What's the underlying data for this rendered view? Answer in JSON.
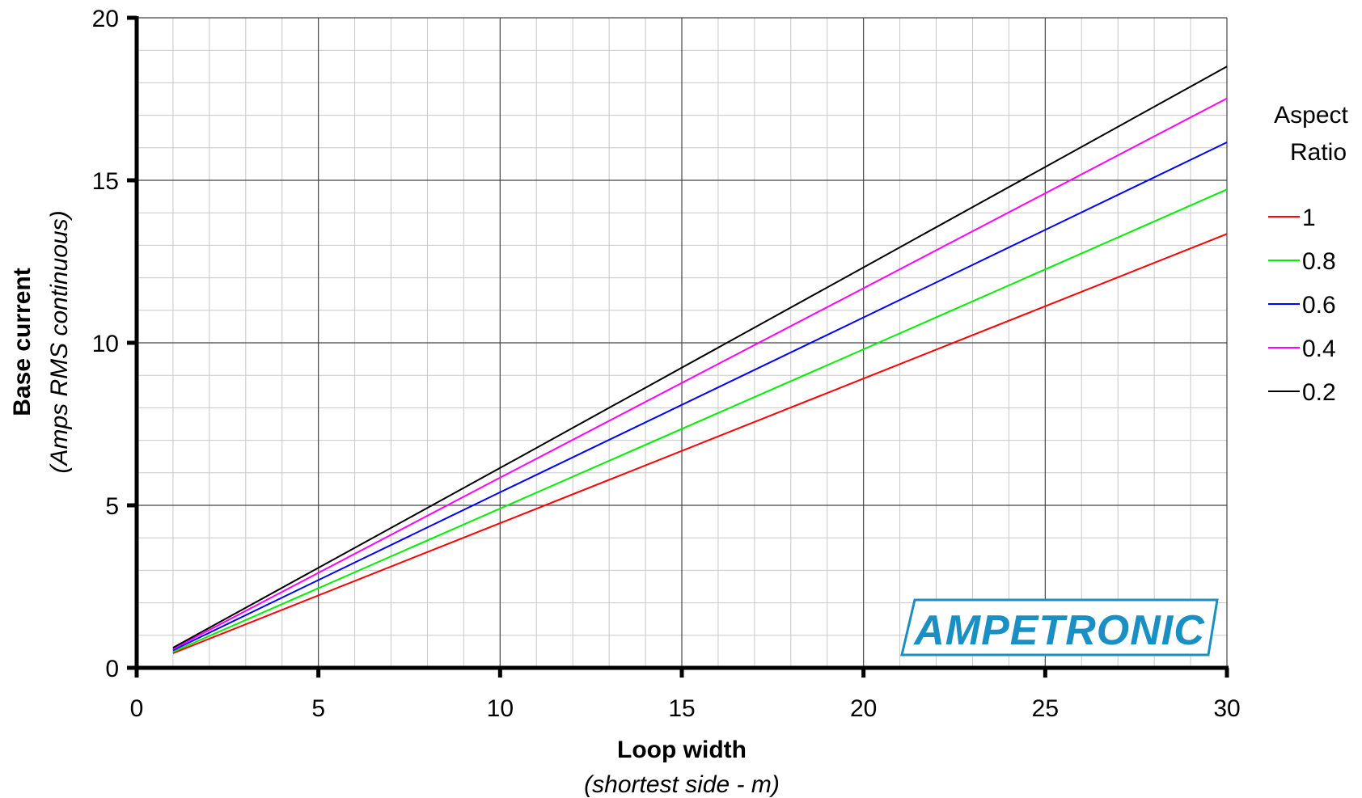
{
  "chart_data": {
    "type": "line",
    "xlabel": "Loop width",
    "xlabel_sub": "(shortest side - m)",
    "ylabel": "Base current",
    "ylabel_sub": "(Amps RMS continuous)",
    "xlim": [
      0,
      30
    ],
    "ylim": [
      0,
      20
    ],
    "x_ticks": [
      0,
      5,
      10,
      15,
      20,
      25,
      30
    ],
    "y_ticks": [
      0,
      5,
      10,
      15,
      20
    ],
    "x_tick_labels": [
      "0",
      "5",
      "10",
      "15",
      "20",
      "25",
      "30"
    ],
    "y_tick_labels": [
      "0",
      "5",
      "10",
      "15",
      "20"
    ],
    "grid": true,
    "legend_title": "Aspect Ratio",
    "legend_placement": "right",
    "series": [
      {
        "name": "1",
        "color": "#ff0000",
        "x": [
          1,
          10,
          20,
          30
        ],
        "y": [
          0.45,
          4.45,
          8.9,
          13.35
        ]
      },
      {
        "name": "0.8",
        "color": "#00ee00",
        "x": [
          1,
          10,
          20,
          30
        ],
        "y": [
          0.49,
          4.9,
          9.8,
          14.72
        ]
      },
      {
        "name": "0.6",
        "color": "#0000ff",
        "x": [
          1,
          10,
          20,
          30
        ],
        "y": [
          0.54,
          5.4,
          10.78,
          16.17
        ]
      },
      {
        "name": "0.4",
        "color": "#ff00ff",
        "x": [
          1,
          10,
          20,
          30
        ],
        "y": [
          0.58,
          5.85,
          11.68,
          17.52
        ]
      },
      {
        "name": "0.2",
        "color": "#000000",
        "x": [
          1,
          10,
          20,
          30
        ],
        "y": [
          0.62,
          6.15,
          12.32,
          18.5
        ]
      }
    ]
  },
  "logo": {
    "text": "AMPETRONIC",
    "color": "#1a8fc4"
  }
}
